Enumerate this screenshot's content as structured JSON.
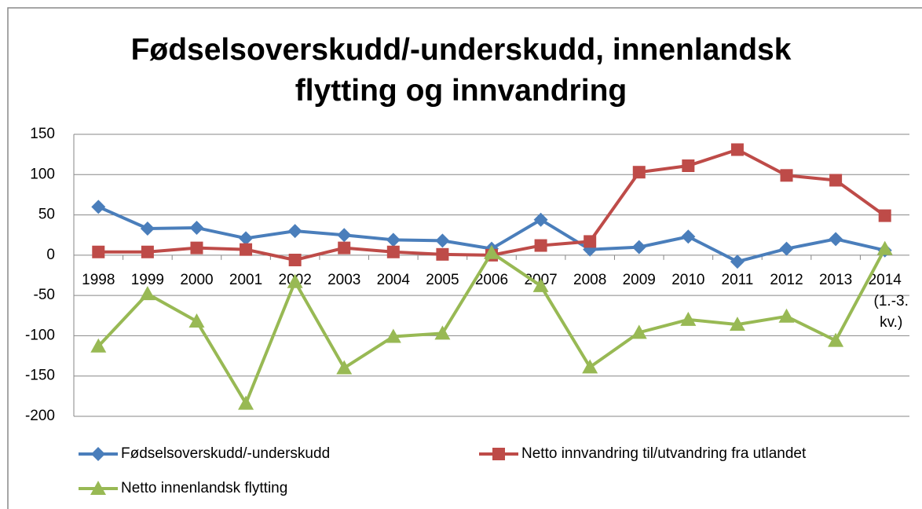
{
  "chart_data": {
    "type": "line",
    "title": "Fødselsoverskudd/-underskudd,  innenlandsk flytting og  innvandring",
    "categories": [
      "1998",
      "1999",
      "2000",
      "2001",
      "2002",
      "2003",
      "2004",
      "2005",
      "2006",
      "2007",
      "2008",
      "2009",
      "2010",
      "2011",
      "2012",
      "2013",
      "2014 (1.-3. kv.)"
    ],
    "series": [
      {
        "name": "Fødselsoverskudd/-underskudd",
        "color": "#4a7ebb",
        "marker": "diamond",
        "values": [
          60,
          33,
          34,
          21,
          30,
          25,
          19,
          18,
          8,
          44,
          7,
          10,
          23,
          -8,
          8,
          20,
          6
        ]
      },
      {
        "name": "Netto innvandring til/utvandring fra utlandet",
        "color": "#be4b48",
        "marker": "square",
        "values": [
          4,
          4,
          9,
          7,
          -6,
          9,
          4,
          1,
          0,
          12,
          17,
          103,
          111,
          131,
          99,
          93,
          49
        ]
      },
      {
        "name": "Netto innenlandsk flytting",
        "color": "#98b954",
        "marker": "triangle",
        "values": [
          -113,
          -48,
          -82,
          -184,
          -33,
          -140,
          -101,
          -97,
          3,
          -38,
          -139,
          -96,
          -80,
          -86,
          -76,
          -106,
          8
        ]
      }
    ],
    "ylim": [
      -200,
      150
    ],
    "yticks": [
      -200,
      -150,
      -100,
      -50,
      0,
      50,
      100,
      150
    ],
    "grid": true,
    "legend": "bottom"
  }
}
